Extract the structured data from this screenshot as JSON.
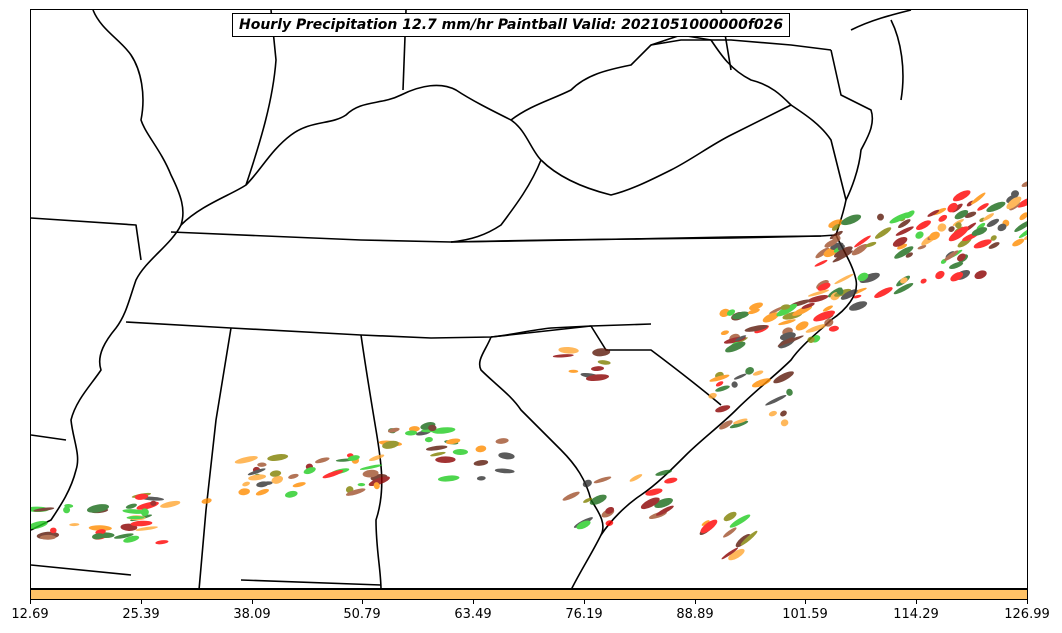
{
  "title": "Hourly Precipitation 12.7 mm/hr Paintball Valid: 2021051000000f026",
  "colorbar": {
    "color": "#ffc266",
    "ticks": [
      "12.69",
      "25.39",
      "38.09",
      "50.79",
      "63.49",
      "76.19",
      "88.89",
      "101.59",
      "114.29",
      "126.99"
    ]
  },
  "paintball_colors": [
    "#ff0000",
    "#ff8c00",
    "#ffa733",
    "#22cc22",
    "#8b0000",
    "#5c1a0a",
    "#808000",
    "#1a6b1a",
    "#333333",
    "#a0522d"
  ]
}
